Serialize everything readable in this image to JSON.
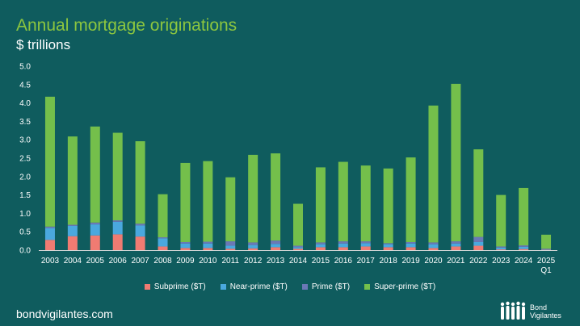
{
  "header": {
    "title": "Annual mortgage originations",
    "subtitle": "$ trillions"
  },
  "footer": {
    "site": "bondvigilantes.com",
    "logo_line1": "Bond",
    "logo_line2": "Vigilantes"
  },
  "colors": {
    "background": "#0f5c5e",
    "subprime": "#f07b72",
    "near_prime": "#4aa8de",
    "prime": "#6b78b6",
    "super_prime": "#74bf4b"
  },
  "chart_data": {
    "type": "bar",
    "stacked": true,
    "categories": [
      "2003",
      "2004",
      "2005",
      "2006",
      "2007",
      "2008",
      "2009",
      "2010",
      "2011",
      "2012",
      "2013",
      "2014",
      "2015",
      "2016",
      "2017",
      "2018",
      "2019",
      "2020",
      "2021",
      "2022",
      "2023",
      "2024",
      "2025 Q1"
    ],
    "category_labels": [
      [
        "2003"
      ],
      [
        "2004"
      ],
      [
        "2005"
      ],
      [
        "2006"
      ],
      [
        "2007"
      ],
      [
        "2008"
      ],
      [
        "2009"
      ],
      [
        "2010"
      ],
      [
        "2011"
      ],
      [
        "2012"
      ],
      [
        "2013"
      ],
      [
        "2014"
      ],
      [
        "2015"
      ],
      [
        "2016"
      ],
      [
        "2017"
      ],
      [
        "2018"
      ],
      [
        "2019"
      ],
      [
        "2020"
      ],
      [
        "2021"
      ],
      [
        "2022"
      ],
      [
        "2023"
      ],
      [
        "2024"
      ],
      [
        "2025",
        "Q1"
      ]
    ],
    "series": [
      {
        "name": "Subprime ($T)",
        "color": "#f07b72",
        "values": [
          0.28,
          0.38,
          0.4,
          0.43,
          0.37,
          0.1,
          0.06,
          0.06,
          0.04,
          0.05,
          0.08,
          0.04,
          0.08,
          0.08,
          0.1,
          0.08,
          0.08,
          0.06,
          0.1,
          0.12,
          0.02,
          0.03,
          0.01
        ]
      },
      {
        "name": "Near-prime ($T)",
        "color": "#4aa8de",
        "values": [
          0.32,
          0.28,
          0.3,
          0.34,
          0.3,
          0.22,
          0.12,
          0.12,
          0.08,
          0.09,
          0.09,
          0.04,
          0.08,
          0.1,
          0.09,
          0.08,
          0.1,
          0.1,
          0.08,
          0.1,
          0.05,
          0.06,
          0.01
        ]
      },
      {
        "name": "Prime ($T)",
        "color": "#6b78b6",
        "values": [
          0.04,
          0.03,
          0.05,
          0.04,
          0.05,
          0.03,
          0.04,
          0.05,
          0.12,
          0.07,
          0.09,
          0.04,
          0.05,
          0.06,
          0.05,
          0.03,
          0.04,
          0.05,
          0.06,
          0.14,
          0.03,
          0.04,
          0.02
        ]
      },
      {
        "name": "Super-prime ($T)",
        "color": "#74bf4b",
        "values": [
          3.53,
          2.4,
          2.61,
          2.38,
          2.24,
          1.17,
          2.15,
          2.19,
          1.74,
          2.38,
          2.37,
          1.14,
          2.04,
          2.16,
          2.06,
          2.03,
          2.3,
          3.72,
          4.28,
          2.38,
          1.4,
          1.56,
          0.38
        ]
      }
    ],
    "ylim": [
      0,
      5.0
    ],
    "yticks": [
      "0.0",
      "0.5",
      "1.0",
      "1.5",
      "2.0",
      "2.5",
      "3.0",
      "3.5",
      "4.0",
      "4.5",
      "5.0"
    ],
    "grid": false,
    "legend_position": "bottom"
  }
}
